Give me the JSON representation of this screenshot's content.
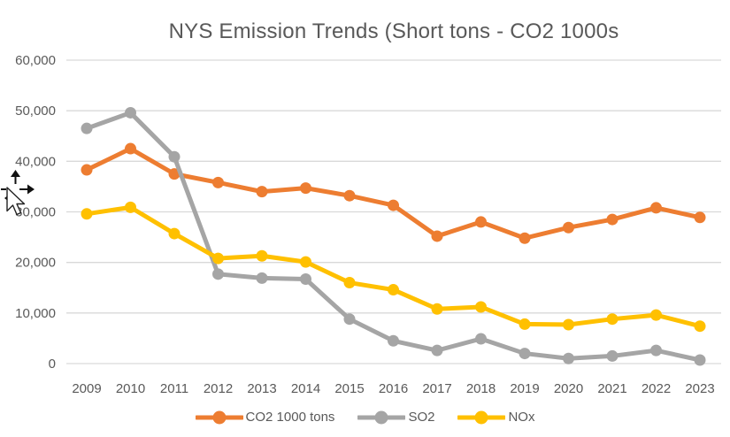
{
  "title": "NYS Emission Trends (Short tons - CO2 1000s",
  "colors": {
    "title_text": "#595959",
    "axis_text": "#595959",
    "gridline": "#d9d9d9",
    "series_co2": "#ED7D31",
    "series_so2": "#A5A5A5",
    "series_nox": "#FFC000"
  },
  "icons": {
    "cursor": "move-cursor-with-arrow-pointer"
  },
  "chart_data": {
    "type": "line",
    "title": "NYS Emission Trends (Short tons - CO2 1000s",
    "xlabel": "",
    "ylabel": "",
    "x": [
      2009,
      2010,
      2011,
      2012,
      2013,
      2014,
      2015,
      2016,
      2017,
      2018,
      2019,
      2020,
      2021,
      2022,
      2023
    ],
    "series": [
      {
        "name": "CO2 1000 tons",
        "color": "#ED7D31",
        "values": [
          38300,
          42500,
          37500,
          35800,
          34000,
          34700,
          33200,
          31300,
          25200,
          28000,
          24800,
          26900,
          28500,
          30800,
          28900
        ]
      },
      {
        "name": "SO2",
        "color": "#A5A5A5",
        "values": [
          46500,
          49600,
          40900,
          17700,
          16900,
          16700,
          8800,
          4500,
          2600,
          4900,
          2000,
          1000,
          1500,
          2600,
          700
        ]
      },
      {
        "name": "NOx",
        "color": "#FFC000",
        "values": [
          29600,
          30900,
          25700,
          20800,
          21300,
          20100,
          16000,
          14600,
          10800,
          11200,
          7800,
          7700,
          8800,
          9600,
          7400
        ]
      }
    ],
    "ylim": [
      0,
      60000
    ],
    "ytick_step": 10000,
    "ytick_labels": [
      "0",
      "10,000",
      "20,000",
      "30,000",
      "40,000",
      "50,000",
      "60,000"
    ],
    "grid": true,
    "legend_position": "bottom"
  },
  "legend": {
    "items": [
      {
        "label": "CO2 1000 tons",
        "color": "#ED7D31"
      },
      {
        "label": "SO2",
        "color": "#A5A5A5"
      },
      {
        "label": "NOx",
        "color": "#FFC000"
      }
    ]
  }
}
